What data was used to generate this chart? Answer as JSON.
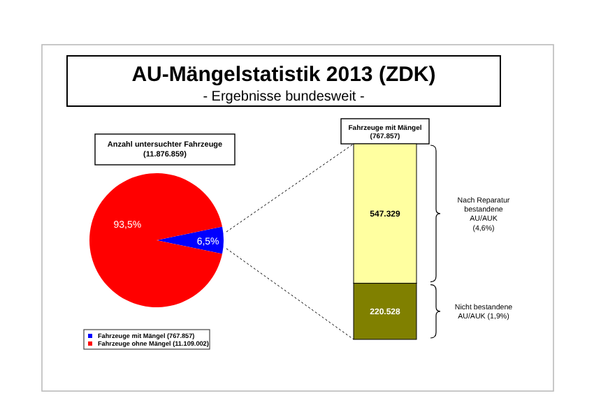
{
  "chart_data": [
    {
      "type": "pie",
      "title": "AU-Mängelstatistik 2013 (ZDK)",
      "subtitle": "- Ergebnisse bundesweit -",
      "annotations": [
        "Anzahl untersuchter Fahrzeuge (11.876.859)"
      ],
      "categories": [
        "Fahrzeuge mit Mängel (767.857)",
        "Fahrzeuge ohne Mängel (11.109.002)"
      ],
      "values": [
        6.5,
        93.5
      ],
      "colors": [
        "#0000ff",
        "#ff0000"
      ],
      "value_labels": [
        "6,5%",
        "93,5%"
      ],
      "legend": "bottom left"
    },
    {
      "type": "bar",
      "stacked": true,
      "title": "Fahrzeuge mit Mängel (767.857)",
      "categories": [
        null
      ],
      "annotations": [
        "Nicht bestandene AU/AUK (1,9%)",
        "Nach Reparatur bestandene AU/AUK (4,6%)"
      ],
      "series": [
        {
          "color": "#808000",
          "values": [
            220528
          ],
          "value_labels": [
            "220.528"
          ]
        },
        {
          "color": "#ffffa0",
          "values": [
            547329
          ],
          "value_labels": [
            "547.329"
          ]
        }
      ]
    }
  ]
}
